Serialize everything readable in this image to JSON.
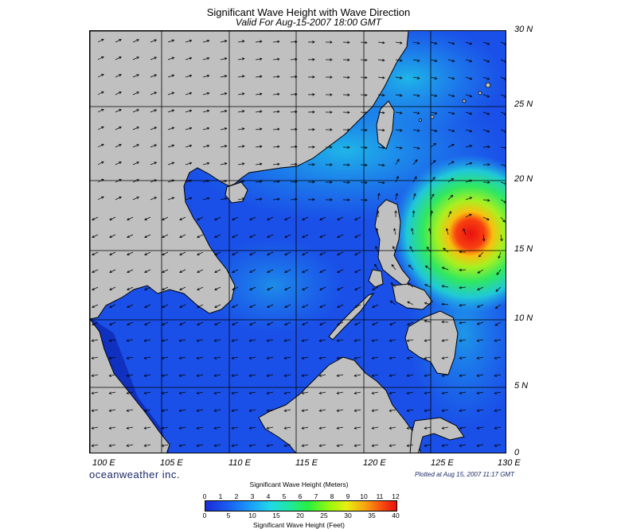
{
  "title": "Significant Wave Height with Wave Direction",
  "subtitle": "Valid For Aug-15-2007 18:00 GMT",
  "lat_labels": [
    "30 N",
    "25 N",
    "20 N",
    "15 N",
    "10 N",
    "5 N",
    "0"
  ],
  "lon_labels": [
    "100 E",
    "105 E",
    "110 E",
    "115 E",
    "120 E",
    "125 E",
    "130 E"
  ],
  "brand": "oceanweather inc.",
  "plotted": "Plotted at Aug 15, 2007 11:17 GMT",
  "legend": {
    "title_meters": "Significant Wave Height (Meters)",
    "title_feet": "Significant Wave Height (Feet)",
    "meters_ticks": [
      "0",
      "1",
      "2",
      "3",
      "4",
      "5",
      "6",
      "7",
      "8",
      "9",
      "10",
      "11",
      "12"
    ],
    "feet_ticks": [
      "0",
      "5",
      "10",
      "15",
      "20",
      "25",
      "30",
      "35",
      "40"
    ]
  },
  "colors": {
    "land": "#c0c0c0",
    "sea_low": "#1a4ee8",
    "sea_mid": "#20c8e8",
    "storm_core": "#e81010"
  }
}
